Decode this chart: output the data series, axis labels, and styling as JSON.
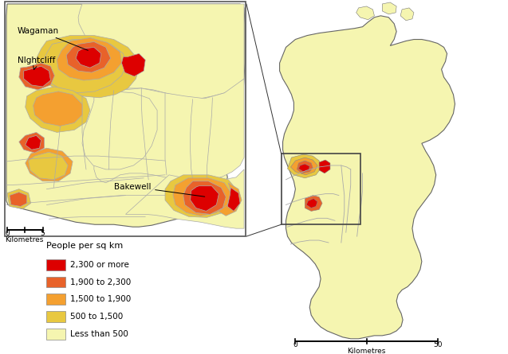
{
  "legend_title": "People per sq km",
  "legend_items": [
    {
      "label": "2,300 or more",
      "color": "#dd0000"
    },
    {
      "label": "1,900 to 2,300",
      "color": "#e8622a"
    },
    {
      "label": "1,500 to 1,900",
      "color": "#f4a030"
    },
    {
      "label": "500 to 1,500",
      "color": "#e8c840"
    },
    {
      "label": "Less than 500",
      "color": "#f5f5b0"
    }
  ],
  "bg_color": "#ffffff",
  "label_wagaman": "Wagaman",
  "label_nightcliff": "NIghtcliff",
  "label_bakewell": "Bakewell"
}
